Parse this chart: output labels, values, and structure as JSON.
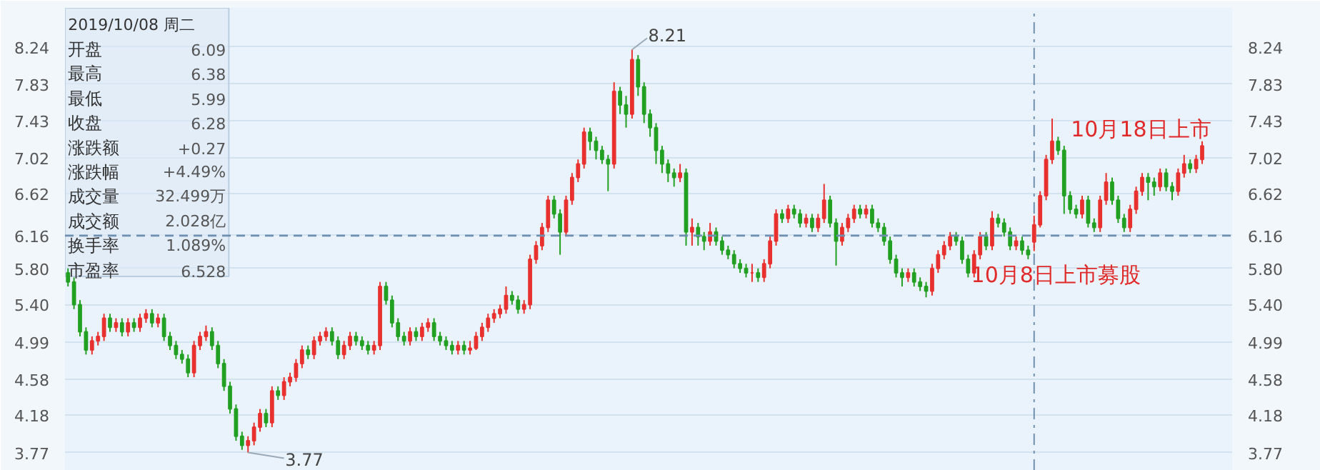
{
  "chart_data": {
    "type": "candlestick",
    "categories": [
      null,
      null,
      null,
      null,
      null,
      null,
      null,
      null,
      null,
      null,
      null,
      null,
      null,
      null,
      null,
      null,
      null,
      null,
      null,
      null,
      null,
      null,
      null,
      null,
      null,
      null,
      null,
      null,
      null,
      null,
      null,
      null,
      null,
      null,
      null,
      null,
      null,
      null,
      null,
      null,
      null,
      null,
      null,
      null,
      null,
      null,
      null,
      null,
      null,
      null,
      null,
      null,
      null,
      null,
      null,
      null,
      null,
      null,
      null,
      null,
      null,
      null,
      null,
      null,
      null,
      null,
      null,
      null,
      null,
      null,
      null,
      null,
      null,
      null,
      null,
      null,
      null,
      null,
      null,
      null,
      null,
      null,
      null,
      null,
      null,
      null,
      null,
      null,
      null,
      null,
      null,
      null,
      null,
      null,
      null,
      null,
      null,
      null,
      null,
      null,
      null,
      null,
      null,
      null,
      null,
      null,
      null,
      null,
      null,
      null,
      null,
      null,
      null,
      null,
      null,
      null,
      null,
      null,
      null,
      null,
      null,
      null,
      null,
      null,
      null,
      null,
      null,
      null,
      null,
      null,
      null,
      null,
      null,
      null,
      null,
      null,
      null,
      null,
      null,
      null,
      null,
      null,
      null,
      null,
      null,
      null,
      null,
      null,
      null,
      null,
      null,
      null,
      null,
      null,
      null,
      null,
      null,
      null,
      null,
      null,
      null,
      null,
      null,
      null,
      null,
      null,
      null,
      null,
      null,
      null,
      null,
      null,
      null,
      null,
      null,
      null,
      null,
      null,
      null,
      null,
      null,
      null,
      null,
      null,
      null,
      null,
      null,
      null,
      null,
      null
    ],
    "ohlc": [
      [
        5.75,
        5.8,
        5.6,
        5.65
      ],
      [
        5.65,
        5.7,
        5.35,
        5.4
      ],
      [
        5.4,
        5.45,
        5.05,
        5.1
      ],
      [
        5.1,
        5.15,
        4.85,
        4.9
      ],
      [
        4.9,
        5.05,
        4.85,
        5.0
      ],
      [
        5.0,
        5.1,
        4.95,
        5.05
      ],
      [
        5.05,
        5.3,
        5.0,
        5.25
      ],
      [
        5.25,
        5.3,
        5.1,
        5.15
      ],
      [
        5.15,
        5.25,
        5.1,
        5.2
      ],
      [
        5.2,
        5.25,
        5.05,
        5.1
      ],
      [
        5.1,
        5.25,
        5.05,
        5.2
      ],
      [
        5.2,
        5.25,
        5.1,
        5.15
      ],
      [
        5.15,
        5.3,
        5.1,
        5.25
      ],
      [
        5.25,
        5.35,
        5.2,
        5.3
      ],
      [
        5.3,
        5.35,
        5.15,
        5.2
      ],
      [
        5.2,
        5.3,
        5.15,
        5.25
      ],
      [
        5.25,
        5.3,
        5.0,
        5.05
      ],
      [
        5.05,
        5.1,
        4.9,
        4.95
      ],
      [
        4.95,
        5.0,
        4.8,
        4.85
      ],
      [
        4.85,
        4.9,
        4.75,
        4.8
      ],
      [
        4.8,
        4.85,
        4.6,
        4.65
      ],
      [
        4.65,
        5.0,
        4.6,
        4.95
      ],
      [
        4.95,
        5.1,
        4.9,
        5.05
      ],
      [
        5.05,
        5.17,
        5.0,
        5.1
      ],
      [
        5.1,
        5.15,
        4.9,
        4.95
      ],
      [
        4.95,
        5.0,
        4.7,
        4.75
      ],
      [
        4.75,
        4.8,
        4.45,
        4.5
      ],
      [
        4.5,
        4.55,
        4.2,
        4.25
      ],
      [
        4.25,
        4.3,
        3.9,
        3.95
      ],
      [
        3.95,
        4.0,
        3.8,
        3.85
      ],
      [
        3.85,
        3.95,
        3.77,
        3.9
      ],
      [
        3.9,
        4.1,
        3.85,
        4.05
      ],
      [
        4.05,
        4.25,
        4.0,
        4.2
      ],
      [
        4.2,
        4.25,
        4.05,
        4.1
      ],
      [
        4.1,
        4.5,
        4.05,
        4.45
      ],
      [
        4.45,
        4.5,
        4.35,
        4.4
      ],
      [
        4.4,
        4.6,
        4.35,
        4.55
      ],
      [
        4.55,
        4.65,
        4.5,
        4.6
      ],
      [
        4.6,
        4.8,
        4.55,
        4.75
      ],
      [
        4.75,
        4.95,
        4.7,
        4.9
      ],
      [
        4.9,
        4.95,
        4.8,
        4.85
      ],
      [
        4.85,
        5.05,
        4.8,
        5.0
      ],
      [
        5.0,
        5.1,
        4.95,
        5.05
      ],
      [
        5.05,
        5.15,
        5.0,
        5.1
      ],
      [
        5.1,
        5.15,
        4.95,
        5.0
      ],
      [
        5.0,
        5.05,
        4.8,
        4.85
      ],
      [
        4.85,
        5.0,
        4.8,
        4.95
      ],
      [
        4.95,
        5.1,
        4.9,
        5.05
      ],
      [
        5.05,
        5.1,
        4.95,
        5.0
      ],
      [
        5.0,
        5.05,
        4.9,
        4.95
      ],
      [
        4.95,
        5.0,
        4.85,
        4.9
      ],
      [
        4.9,
        5.0,
        4.85,
        4.95
      ],
      [
        4.95,
        5.65,
        4.9,
        5.6
      ],
      [
        5.6,
        5.65,
        5.4,
        5.45
      ],
      [
        5.45,
        5.5,
        5.15,
        5.2
      ],
      [
        5.2,
        5.25,
        5.0,
        5.05
      ],
      [
        5.05,
        5.1,
        4.95,
        5.0
      ],
      [
        5.0,
        5.15,
        4.95,
        5.1
      ],
      [
        5.1,
        5.15,
        5.0,
        5.05
      ],
      [
        5.05,
        5.2,
        5.0,
        5.15
      ],
      [
        5.15,
        5.25,
        5.1,
        5.2
      ],
      [
        5.2,
        5.25,
        5.0,
        5.05
      ],
      [
        5.05,
        5.1,
        4.95,
        5.0
      ],
      [
        5.0,
        5.05,
        4.9,
        4.95
      ],
      [
        4.95,
        5.0,
        4.85,
        4.9
      ],
      [
        4.9,
        5.0,
        4.85,
        4.95
      ],
      [
        4.95,
        5.0,
        4.85,
        4.9
      ],
      [
        4.9,
        5.0,
        4.85,
        4.92
      ],
      [
        4.92,
        5.1,
        4.9,
        5.05
      ],
      [
        5.05,
        5.2,
        5.0,
        5.15
      ],
      [
        5.15,
        5.3,
        5.1,
        5.25
      ],
      [
        5.25,
        5.35,
        5.2,
        5.3
      ],
      [
        5.3,
        5.4,
        5.25,
        5.35
      ],
      [
        5.35,
        5.6,
        5.3,
        5.5
      ],
      [
        5.5,
        5.55,
        5.4,
        5.45
      ],
      [
        5.45,
        5.5,
        5.3,
        5.35
      ],
      [
        5.35,
        5.45,
        5.3,
        5.4
      ],
      [
        5.4,
        5.95,
        5.35,
        5.9
      ],
      [
        5.9,
        6.1,
        5.85,
        6.05
      ],
      [
        6.05,
        6.3,
        6.0,
        6.25
      ],
      [
        6.25,
        6.6,
        6.2,
        6.55
      ],
      [
        6.55,
        6.6,
        6.35,
        6.4
      ],
      [
        6.4,
        6.45,
        5.95,
        6.2
      ],
      [
        6.2,
        6.6,
        6.15,
        6.55
      ],
      [
        6.55,
        6.85,
        6.5,
        6.8
      ],
      [
        6.8,
        7.0,
        6.75,
        6.95
      ],
      [
        6.95,
        7.35,
        6.9,
        7.3
      ],
      [
        7.3,
        7.35,
        7.1,
        7.2
      ],
      [
        7.2,
        7.25,
        7.0,
        7.1
      ],
      [
        7.1,
        7.15,
        6.95,
        7.0
      ],
      [
        7.0,
        7.05,
        6.65,
        6.95
      ],
      [
        6.95,
        7.85,
        6.9,
        7.75
      ],
      [
        7.75,
        7.8,
        7.5,
        7.6
      ],
      [
        7.6,
        7.7,
        7.35,
        7.5
      ],
      [
        7.5,
        8.21,
        7.45,
        8.1
      ],
      [
        8.1,
        8.15,
        7.7,
        7.8
      ],
      [
        7.8,
        7.85,
        7.4,
        7.5
      ],
      [
        7.5,
        7.55,
        7.25,
        7.35
      ],
      [
        7.35,
        7.4,
        6.95,
        7.1
      ],
      [
        7.1,
        7.15,
        6.85,
        6.95
      ],
      [
        6.95,
        7.0,
        6.75,
        6.85
      ],
      [
        6.85,
        6.9,
        6.7,
        6.8
      ],
      [
        6.8,
        6.95,
        6.75,
        6.85
      ],
      [
        6.85,
        6.9,
        6.05,
        6.2
      ],
      [
        6.2,
        6.35,
        6.05,
        6.25
      ],
      [
        6.25,
        6.3,
        6.05,
        6.15
      ],
      [
        6.15,
        6.2,
        6.0,
        6.1
      ],
      [
        6.1,
        6.3,
        6.05,
        6.2
      ],
      [
        6.2,
        6.25,
        6.05,
        6.1
      ],
      [
        6.1,
        6.15,
        5.95,
        6.0
      ],
      [
        6.0,
        6.05,
        5.9,
        5.95
      ],
      [
        5.95,
        6.0,
        5.8,
        5.85
      ],
      [
        5.85,
        5.9,
        5.75,
        5.8
      ],
      [
        5.8,
        5.85,
        5.7,
        5.75
      ],
      [
        5.75,
        5.85,
        5.65,
        5.75
      ],
      [
        5.75,
        5.8,
        5.65,
        5.7
      ],
      [
        5.7,
        5.9,
        5.65,
        5.85
      ],
      [
        5.85,
        6.15,
        5.8,
        6.1
      ],
      [
        6.1,
        6.45,
        6.05,
        6.4
      ],
      [
        6.4,
        6.45,
        6.3,
        6.35
      ],
      [
        6.35,
        6.5,
        6.3,
        6.45
      ],
      [
        6.45,
        6.5,
        6.35,
        6.4
      ],
      [
        6.4,
        6.45,
        6.25,
        6.3
      ],
      [
        6.3,
        6.4,
        6.25,
        6.35
      ],
      [
        6.35,
        6.4,
        6.2,
        6.25
      ],
      [
        6.25,
        6.4,
        6.2,
        6.35
      ],
      [
        6.35,
        6.73,
        6.3,
        6.55
      ],
      [
        6.55,
        6.6,
        6.25,
        6.3
      ],
      [
        6.3,
        6.35,
        5.83,
        6.1
      ],
      [
        6.1,
        6.3,
        6.05,
        6.25
      ],
      [
        6.25,
        6.4,
        6.2,
        6.35
      ],
      [
        6.35,
        6.5,
        6.3,
        6.45
      ],
      [
        6.45,
        6.5,
        6.35,
        6.4
      ],
      [
        6.4,
        6.5,
        6.35,
        6.45
      ],
      [
        6.45,
        6.5,
        6.25,
        6.3
      ],
      [
        6.3,
        6.35,
        6.2,
        6.25
      ],
      [
        6.25,
        6.3,
        6.05,
        6.1
      ],
      [
        6.1,
        6.15,
        5.85,
        5.9
      ],
      [
        5.9,
        5.95,
        5.7,
        5.75
      ],
      [
        5.75,
        5.8,
        5.6,
        5.7
      ],
      [
        5.7,
        5.8,
        5.65,
        5.75
      ],
      [
        5.75,
        5.8,
        5.6,
        5.65
      ],
      [
        5.65,
        5.7,
        5.55,
        5.6
      ],
      [
        5.6,
        5.65,
        5.48,
        5.55
      ],
      [
        5.55,
        5.85,
        5.5,
        5.8
      ],
      [
        5.8,
        6.0,
        5.75,
        5.95
      ],
      [
        5.95,
        6.1,
        5.9,
        6.05
      ],
      [
        6.05,
        6.2,
        6.0,
        6.15
      ],
      [
        6.15,
        6.2,
        6.05,
        6.1
      ],
      [
        6.1,
        6.15,
        5.85,
        5.9
      ],
      [
        5.9,
        5.95,
        5.7,
        5.75
      ],
      [
        5.75,
        6.0,
        5.7,
        5.95
      ],
      [
        5.95,
        6.2,
        5.9,
        6.15
      ],
      [
        6.15,
        6.2,
        6.0,
        6.05
      ],
      [
        6.05,
        6.43,
        6.0,
        6.35
      ],
      [
        6.35,
        6.4,
        6.25,
        6.3
      ],
      [
        6.3,
        6.35,
        6.15,
        6.2
      ],
      [
        6.2,
        6.25,
        6.0,
        6.05
      ],
      [
        6.05,
        6.15,
        6.0,
        6.1
      ],
      [
        6.1,
        6.15,
        5.95,
        6.0
      ],
      [
        6.0,
        6.05,
        5.9,
        5.95
      ],
      [
        6.09,
        6.38,
        5.99,
        6.28
      ],
      [
        6.28,
        6.65,
        6.25,
        6.6
      ],
      [
        6.6,
        7.05,
        6.55,
        7.0
      ],
      [
        7.0,
        7.45,
        6.95,
        7.2
      ],
      [
        7.2,
        7.25,
        7.05,
        7.1
      ],
      [
        7.1,
        7.15,
        6.4,
        6.6
      ],
      [
        6.6,
        6.65,
        6.4,
        6.45
      ],
      [
        6.45,
        6.5,
        6.35,
        6.4
      ],
      [
        6.4,
        6.6,
        6.35,
        6.55
      ],
      [
        6.55,
        6.6,
        6.25,
        6.3
      ],
      [
        6.3,
        6.35,
        6.2,
        6.25
      ],
      [
        6.25,
        6.6,
        6.2,
        6.55
      ],
      [
        6.55,
        6.85,
        6.5,
        6.75
      ],
      [
        6.75,
        6.8,
        6.5,
        6.55
      ],
      [
        6.55,
        6.6,
        6.3,
        6.35
      ],
      [
        6.35,
        6.4,
        6.2,
        6.25
      ],
      [
        6.25,
        6.5,
        6.2,
        6.45
      ],
      [
        6.45,
        6.7,
        6.4,
        6.65
      ],
      [
        6.65,
        6.85,
        6.6,
        6.8
      ],
      [
        6.8,
        6.85,
        6.55,
        6.75
      ],
      [
        6.75,
        6.8,
        6.6,
        6.7
      ],
      [
        6.7,
        6.9,
        6.65,
        6.85
      ],
      [
        6.85,
        6.9,
        6.65,
        6.7
      ],
      [
        6.7,
        6.75,
        6.55,
        6.65
      ],
      [
        6.65,
        6.9,
        6.6,
        6.85
      ],
      [
        6.85,
        7.05,
        6.8,
        6.95
      ],
      [
        6.95,
        7.0,
        6.85,
        6.9
      ],
      [
        6.9,
        7.05,
        6.85,
        7.0
      ],
      [
        7.0,
        7.2,
        6.95,
        7.15
      ]
    ],
    "ylim": [
      3.57,
      8.67
    ],
    "yticks": [
      3.77,
      4.18,
      4.58,
      4.99,
      {
        "value": 5.4,
        "label": "5.40"
      },
      {
        "value": 5.8,
        "label": "5.80"
      },
      6.16,
      6.62,
      7.02,
      7.43,
      7.83,
      8.24
    ],
    "y2lim": [
      3.57,
      8.67
    ],
    "y2ticks": [
      3.77,
      4.18,
      4.58,
      4.99,
      {
        "value": 5.4,
        "label": "5.40"
      },
      {
        "value": 5.8,
        "label": "5.80"
      },
      6.16,
      6.62,
      7.02,
      7.43,
      7.83,
      8.24
    ],
    "grid": "y",
    "ref_lines": [
      {
        "axis": "y",
        "value": 6.16,
        "label": null,
        "line_style": "dashed"
      }
    ],
    "annotations": [
      "2019/10/08 周二",
      "开盘",
      "6.09",
      "最高",
      "6.38",
      "最低",
      "5.99",
      "收盘",
      "6.28",
      "涨跌额",
      "+0.27",
      "涨跌幅",
      "+4.49%",
      "成交量",
      "32.499万",
      "成交额",
      "2.028亿",
      "换手率",
      "1.089%",
      "市盈率",
      "6.528",
      "8.21",
      "3.77",
      "10月18日上市",
      "10月8日上市募股"
    ]
  }
}
